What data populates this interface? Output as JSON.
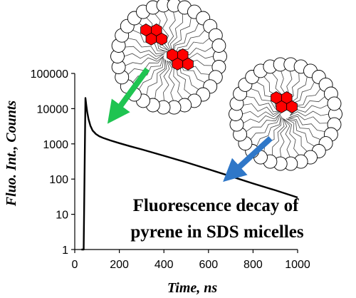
{
  "chart_data": {
    "type": "line",
    "xlabel": "Time, ns",
    "ylabel": "Fluo. Int., Counts",
    "xlim": [
      0,
      1000
    ],
    "ylim": [
      1,
      100000
    ],
    "y_scale": "log",
    "grid": false,
    "x_ticks": [
      "0",
      "200",
      "400",
      "600",
      "800",
      "1000"
    ],
    "y_ticks": [
      "1",
      "10",
      "100",
      "1000",
      "10000",
      "100000"
    ],
    "series": [
      {
        "x": [
          30,
          40,
          48,
          52,
          56,
          62,
          70,
          80,
          95,
          110,
          130,
          160,
          200,
          250,
          300,
          400,
          500,
          600,
          700,
          800,
          900,
          1000
        ],
        "y": [
          1,
          1,
          20000,
          12000,
          8000,
          5000,
          3300,
          2400,
          1900,
          1650,
          1450,
          1250,
          1050,
          850,
          700,
          460,
          300,
          190,
          120,
          75,
          48,
          30
        ],
        "color": "#000000"
      }
    ],
    "annotation_lines": [
      "Fluorescence decay of",
      "pyrene in SDS micelles"
    ],
    "arrow_colors": {
      "excimer": "#1fc451",
      "monomer": "#2f77c8"
    },
    "illustration_colors": {
      "pyrene": "#ff0000",
      "head_group": "#ffffff",
      "tail": "#444444"
    }
  }
}
